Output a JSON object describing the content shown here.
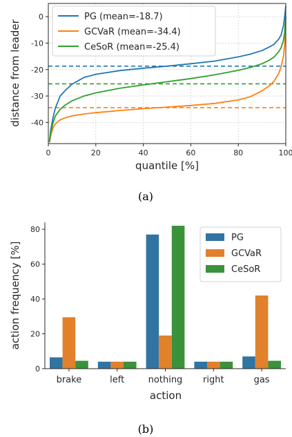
{
  "captions": [
    "(a)",
    "(b)"
  ],
  "chart_data": [
    {
      "type": "line",
      "title": "",
      "xlabel": "quantile [%]",
      "ylabel": "distance from leader",
      "xlim": [
        0,
        100
      ],
      "ylim": [
        -48,
        5
      ],
      "xticks": [
        0,
        20,
        40,
        60,
        80,
        100
      ],
      "yticks": [
        0,
        -10,
        -20,
        -30,
        -40
      ],
      "grid": true,
      "legend": "top-left",
      "series": [
        {
          "name": "PG (mean=-18.7)",
          "color": "#1f77b4",
          "mean": -18.7,
          "x": [
            0.5,
            1,
            2,
            3,
            5,
            7,
            10,
            15,
            20,
            30,
            40,
            50,
            60,
            70,
            80,
            85,
            90,
            93,
            95,
            97,
            98,
            99,
            99.5,
            100
          ],
          "y": [
            -47,
            -43,
            -38,
            -34.5,
            -30,
            -28,
            -25.5,
            -23,
            -21.8,
            -20.4,
            -19.5,
            -18.7,
            -17.8,
            -16.8,
            -15.2,
            -14.2,
            -12.8,
            -11.5,
            -10.5,
            -8.5,
            -7,
            -3.5,
            0,
            4
          ]
        },
        {
          "name": "GCVaR (mean=-34.4)",
          "color": "#ff7f0e",
          "mean": -34.4,
          "x": [
            0.5,
            1,
            2,
            3,
            5,
            7,
            10,
            15,
            20,
            30,
            40,
            50,
            60,
            70,
            80,
            85,
            88,
            90,
            93,
            95,
            97,
            98,
            99,
            99.5,
            100
          ],
          "y": [
            -47.5,
            -45,
            -42,
            -40.5,
            -39,
            -38.3,
            -37.5,
            -36.8,
            -36.3,
            -35.5,
            -34.8,
            -34.2,
            -33.6,
            -32.8,
            -31.5,
            -30.3,
            -29,
            -28,
            -26.2,
            -24.5,
            -21.5,
            -19,
            -15,
            -11,
            -2
          ]
        },
        {
          "name": "CeSoR (mean=-25.4)",
          "color": "#2ca02c",
          "mean": -25.4,
          "x": [
            0.5,
            1,
            2,
            3,
            5,
            7,
            10,
            15,
            20,
            30,
            40,
            50,
            60,
            70,
            80,
            85,
            90,
            93,
            95,
            97,
            98,
            99,
            99.5,
            100
          ],
          "y": [
            -47.5,
            -44,
            -40,
            -37.5,
            -35,
            -33.5,
            -31.8,
            -30,
            -28.8,
            -27.1,
            -25.8,
            -24.6,
            -23.4,
            -22,
            -20.3,
            -19.2,
            -17.8,
            -16.5,
            -15.3,
            -13.3,
            -11.8,
            -9,
            -6,
            0
          ]
        }
      ]
    },
    {
      "type": "bar",
      "title": "",
      "xlabel": "action",
      "ylabel": "action frequency [%]",
      "categories": [
        "brake",
        "left",
        "nothing",
        "right",
        "gas"
      ],
      "ylim": [
        0,
        84
      ],
      "yticks": [
        0,
        20,
        40,
        60,
        80
      ],
      "grid": false,
      "legend": "top-right",
      "series": [
        {
          "name": "PG",
          "color": "#3274a1",
          "values": [
            6.5,
            4,
            77,
            4,
            7
          ]
        },
        {
          "name": "GCVaR",
          "color": "#e1812c",
          "values": [
            29.5,
            4,
            19,
            4,
            42
          ]
        },
        {
          "name": "CeSoR",
          "color": "#3a923a",
          "values": [
            4.5,
            4,
            82,
            4,
            4.5
          ]
        }
      ]
    }
  ]
}
